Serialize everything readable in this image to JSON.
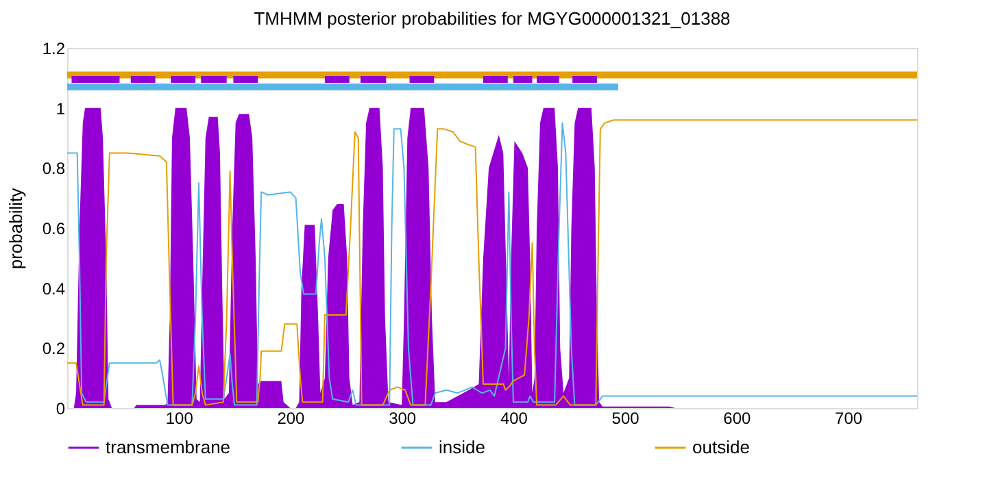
{
  "chart_data": {
    "type": "line",
    "title": "TMHMM posterior probabilities for MGYG000001321_01388",
    "ylabel": "probability",
    "xlim": [
      0,
      762
    ],
    "ylim": [
      0,
      1.2
    ],
    "xticks": [
      100,
      200,
      300,
      400,
      500,
      600,
      700
    ],
    "yticks": [
      0,
      0.2,
      0.4,
      0.6,
      0.8,
      1,
      1.2
    ],
    "grid": false,
    "legend": "bottom",
    "marker": "none",
    "line_style": "solid",
    "series": [
      {
        "name": "transmembrane",
        "type": "area",
        "color": "#9400d3",
        "x": [
          0,
          6,
          8,
          11,
          14,
          16,
          30,
          32,
          35,
          37,
          40,
          60,
          62,
          88,
          90,
          92,
          94,
          97,
          107,
          110,
          113,
          116,
          119,
          121,
          124,
          127,
          135,
          137,
          139,
          141,
          145,
          148,
          151,
          154,
          163,
          166,
          169,
          171,
          174,
          192,
          194,
          200,
          205,
          208,
          210,
          213,
          222,
          225,
          227,
          231,
          234,
          238,
          242,
          248,
          251,
          253,
          256,
          262,
          265,
          268,
          271,
          280,
          283,
          285,
          288,
          300,
          302,
          305,
          308,
          320,
          324,
          327,
          330,
          340,
          350,
          360,
          369,
          373,
          378,
          387,
          391,
          394,
          396,
          398,
          401,
          408,
          413,
          415,
          417,
          419,
          421,
          424,
          427,
          437,
          440,
          442,
          445,
          450,
          452,
          455,
          458,
          470,
          473,
          475,
          477,
          480,
          540,
          545,
          762
        ],
        "values": [
          0,
          0,
          0.05,
          0.6,
          0.95,
          1,
          1,
          0.9,
          0.5,
          0.03,
          0,
          0,
          0.01,
          0.01,
          0.02,
          0.3,
          0.9,
          1,
          1,
          0.9,
          0.5,
          0.03,
          0.02,
          0.4,
          0.9,
          0.97,
          0.97,
          0.85,
          0.4,
          0.03,
          0.05,
          0.6,
          0.95,
          0.98,
          0.98,
          0.9,
          0.5,
          0.08,
          0.09,
          0.09,
          0.02,
          0,
          0,
          0.02,
          0.4,
          0.61,
          0.61,
          0.3,
          0.05,
          0.1,
          0.5,
          0.66,
          0.68,
          0.68,
          0.5,
          0.1,
          0.01,
          0.02,
          0.6,
          0.95,
          1,
          1,
          0.8,
          0.3,
          0.02,
          0.01,
          0.3,
          0.9,
          1,
          1,
          0.8,
          0.3,
          0.02,
          0.02,
          0.04,
          0.06,
          0.08,
          0.5,
          0.8,
          0.91,
          0.85,
          0.4,
          0.1,
          0.5,
          0.89,
          0.85,
          0.8,
          0.5,
          0.05,
          0.1,
          0.6,
          0.95,
          1,
          1,
          0.8,
          0.2,
          0.05,
          0.1,
          0.6,
          0.95,
          1,
          1,
          0.8,
          0.3,
          0.02,
          0.005,
          0.005,
          0,
          0
        ]
      },
      {
        "name": "inside",
        "color": "#56b4e9",
        "x": [
          0,
          9,
          11,
          13,
          17,
          33,
          36,
          38,
          80,
          83,
          86,
          90,
          112,
          115,
          118,
          121,
          124,
          140,
          143,
          146,
          148,
          150,
          170,
          172,
          174,
          180,
          200,
          205,
          209,
          212,
          223,
          226,
          228,
          231,
          235,
          238,
          252,
          256,
          259,
          289,
          291,
          293,
          299,
          302,
          306,
          310,
          326,
          330,
          340,
          350,
          363,
          372,
          379,
          383,
          393,
          396,
          398,
          400,
          413,
          415,
          418,
          437,
          441,
          444,
          447,
          452,
          455,
          474,
          478,
          480,
          762
        ],
        "values": [
          0.85,
          0.85,
          0.5,
          0.05,
          0.02,
          0.02,
          0.1,
          0.15,
          0.15,
          0.16,
          0.1,
          0.01,
          0.01,
          0.3,
          0.75,
          0.3,
          0.03,
          0.03,
          0.1,
          0.18,
          0.08,
          0.01,
          0.01,
          0.4,
          0.72,
          0.71,
          0.72,
          0.7,
          0.45,
          0.38,
          0.38,
          0.55,
          0.63,
          0.5,
          0.1,
          0.03,
          0.02,
          0.06,
          0.01,
          0.01,
          0.6,
          0.93,
          0.93,
          0.8,
          0.2,
          0.01,
          0.01,
          0.05,
          0.06,
          0.05,
          0.07,
          0.05,
          0.06,
          0.04,
          0.2,
          0.72,
          0.3,
          0.02,
          0.02,
          0.04,
          0.02,
          0.02,
          0.6,
          0.95,
          0.85,
          0.2,
          0.01,
          0.01,
          0.03,
          0.04,
          0.04
        ]
      },
      {
        "name": "outside",
        "color": "#e69f00",
        "x": [
          0,
          8,
          11,
          14,
          33,
          35,
          38,
          54,
          83,
          89,
          92,
          95,
          112,
          115,
          118,
          121,
          124,
          140,
          143,
          146,
          148,
          152,
          171,
          173,
          174,
          192,
          195,
          206,
          209,
          211,
          229,
          231,
          250,
          254,
          258,
          261,
          264,
          283,
          289,
          296,
          303,
          308,
          321,
          326,
          332,
          338,
          346,
          352,
          358,
          366,
          369,
          373,
          391,
          393,
          396,
          400,
          410,
          414,
          417,
          419,
          421,
          438,
          445,
          451,
          474,
          476,
          478,
          482,
          490,
          762
        ],
        "values": [
          0.15,
          0.15,
          0.08,
          0.01,
          0.01,
          0.5,
          0.85,
          0.85,
          0.84,
          0.82,
          0.4,
          0.01,
          0.01,
          0.05,
          0.14,
          0.05,
          0.01,
          0.02,
          0.3,
          0.79,
          0.5,
          0.02,
          0.02,
          0.1,
          0.19,
          0.19,
          0.28,
          0.28,
          0.1,
          0.02,
          0.02,
          0.31,
          0.31,
          0.6,
          0.92,
          0.9,
          0.01,
          0.01,
          0.06,
          0.07,
          0.06,
          0.01,
          0.01,
          0.4,
          0.93,
          0.93,
          0.92,
          0.89,
          0.88,
          0.87,
          0.5,
          0.08,
          0.08,
          0.06,
          0.07,
          0.09,
          0.11,
          0.3,
          0.55,
          0.2,
          0.01,
          0.01,
          0.04,
          0.01,
          0.01,
          0.5,
          0.93,
          0.95,
          0.96,
          0.96
        ]
      },
      {
        "color": "#e69f00",
        "x": [
          0,
          762
        ],
        "values": [
          1.11,
          1.11
        ]
      },
      {
        "color": "#56b4e9",
        "x": [
          0,
          494
        ],
        "values": [
          1.07,
          1.07
        ]
      },
      {
        "color": "#9400d3",
        "x": [
          4,
          47,
          52,
          57,
          79,
          86,
          93,
          115,
          117,
          120,
          143,
          146,
          149,
          171,
          200,
          231,
          253,
          258,
          263,
          286,
          296,
          307,
          329,
          350,
          373,
          395,
          397,
          400,
          417,
          419,
          421,
          441,
          447,
          453,
          475
        ],
        "values": [
          1.095,
          1.095,
          null,
          1.095,
          1.095,
          null,
          1.095,
          1.095,
          null,
          1.095,
          1.095,
          null,
          1.095,
          1.095,
          null,
          1.095,
          1.095,
          null,
          1.095,
          1.095,
          null,
          1.095,
          1.095,
          null,
          1.095,
          1.095,
          null,
          1.095,
          1.095,
          null,
          1.095,
          1.095,
          null,
          1.095,
          1.095
        ]
      }
    ]
  }
}
